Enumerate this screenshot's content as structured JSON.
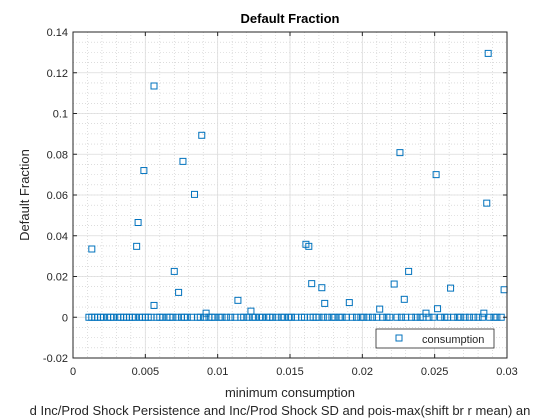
{
  "chart_data": {
    "type": "scatter",
    "title": "Default Fraction",
    "xlabel": "minimum consumption",
    "ylabel": "Default Fraction",
    "caption": "d Inc/Prod Shock Persistence and Inc/Prod Shock SD and pois-max(shift br r mean) an",
    "xlim": [
      0,
      0.03
    ],
    "ylim": [
      -0.02,
      0.14
    ],
    "xticks": [
      0,
      0.005,
      0.01,
      0.015,
      0.02,
      0.025,
      0.03
    ],
    "xtick_labels": [
      "0",
      "0.005",
      "0.01",
      "0.015",
      "0.02",
      "0.025",
      "0.03"
    ],
    "yticks": [
      -0.02,
      0,
      0.02,
      0.04,
      0.06,
      0.08,
      0.1,
      0.12,
      0.14
    ],
    "ytick_labels": [
      "-0.02",
      "0",
      "0.02",
      "0.04",
      "0.06",
      "0.08",
      "0.1",
      "0.12",
      "0.14"
    ],
    "grid": true,
    "minor_grid": true,
    "legend_position": "bottom-right",
    "marker_color": "#0072bd",
    "series": [
      {
        "name": "consumption",
        "marker": "square",
        "points": [
          [
            0.0013,
            0.0335
          ],
          [
            0.0044,
            0.0348
          ],
          [
            0.0045,
            0.0465
          ],
          [
            0.0049,
            0.072
          ],
          [
            0.0056,
            0.1135
          ],
          [
            0.0056,
            0.0058
          ],
          [
            0.007,
            0.0225
          ],
          [
            0.0073,
            0.0122
          ],
          [
            0.0076,
            0.0765
          ],
          [
            0.0084,
            0.0603
          ],
          [
            0.0089,
            0.0893
          ],
          [
            0.0092,
            0.002
          ],
          [
            0.0114,
            0.0083
          ],
          [
            0.0123,
            0.003
          ],
          [
            0.0161,
            0.0358
          ],
          [
            0.0163,
            0.0348
          ],
          [
            0.0165,
            0.0165
          ],
          [
            0.0172,
            0.0145
          ],
          [
            0.0174,
            0.0068
          ],
          [
            0.0191,
            0.0072
          ],
          [
            0.0212,
            0.004
          ],
          [
            0.0222,
            0.0163
          ],
          [
            0.0226,
            0.0808
          ],
          [
            0.0229,
            0.0088
          ],
          [
            0.0232,
            0.0225
          ],
          [
            0.0244,
            0.002
          ],
          [
            0.0251,
            0.07
          ],
          [
            0.0252,
            0.0042
          ],
          [
            0.0261,
            0.0143
          ],
          [
            0.0284,
            0.002
          ],
          [
            0.0286,
            0.056
          ],
          [
            0.0287,
            0.1295
          ],
          [
            0.0298,
            0.0135
          ],
          [
            0.0011,
            0
          ],
          [
            0.0013,
            0
          ],
          [
            0.0015,
            0
          ],
          [
            0.0017,
            0
          ],
          [
            0.0019,
            0
          ],
          [
            0.0021,
            0
          ],
          [
            0.0024,
            0
          ],
          [
            0.0026,
            0
          ],
          [
            0.0028,
            0
          ],
          [
            0.0031,
            0
          ],
          [
            0.0033,
            0
          ],
          [
            0.0035,
            0
          ],
          [
            0.0037,
            0
          ],
          [
            0.0039,
            0
          ],
          [
            0.0041,
            0
          ],
          [
            0.0043,
            0
          ],
          [
            0.0046,
            0
          ],
          [
            0.0048,
            0
          ],
          [
            0.005,
            0
          ],
          [
            0.0052,
            0
          ],
          [
            0.0054,
            0
          ],
          [
            0.0058,
            0
          ],
          [
            0.006,
            0
          ],
          [
            0.0062,
            0
          ],
          [
            0.0065,
            0
          ],
          [
            0.0067,
            0
          ],
          [
            0.0069,
            0
          ],
          [
            0.0072,
            0
          ],
          [
            0.0075,
            0
          ],
          [
            0.0077,
            0
          ],
          [
            0.0079,
            0
          ],
          [
            0.0082,
            0
          ],
          [
            0.0086,
            0
          ],
          [
            0.0088,
            0
          ],
          [
            0.0091,
            0
          ],
          [
            0.0094,
            0
          ],
          [
            0.0096,
            0
          ],
          [
            0.0098,
            0
          ],
          [
            0.0101,
            0
          ],
          [
            0.0103,
            0
          ],
          [
            0.0106,
            0
          ],
          [
            0.0109,
            0
          ],
          [
            0.0112,
            0
          ],
          [
            0.0116,
            0
          ],
          [
            0.0118,
            0
          ],
          [
            0.0121,
            0
          ],
          [
            0.0124,
            0
          ],
          [
            0.0126,
            0
          ],
          [
            0.0129,
            0
          ],
          [
            0.0131,
            0
          ],
          [
            0.0134,
            0
          ],
          [
            0.0136,
            0
          ],
          [
            0.0138,
            0
          ],
          [
            0.0141,
            0
          ],
          [
            0.0144,
            0
          ],
          [
            0.0146,
            0
          ],
          [
            0.0149,
            0
          ],
          [
            0.0151,
            0
          ],
          [
            0.0154,
            0
          ],
          [
            0.0158,
            0
          ],
          [
            0.016,
            0
          ],
          [
            0.0164,
            0
          ],
          [
            0.0166,
            0
          ],
          [
            0.0168,
            0
          ],
          [
            0.017,
            0
          ],
          [
            0.0173,
            0
          ],
          [
            0.0176,
            0
          ],
          [
            0.0179,
            0
          ],
          [
            0.0181,
            0
          ],
          [
            0.0184,
            0
          ],
          [
            0.0186,
            0
          ],
          [
            0.0189,
            0
          ],
          [
            0.0193,
            0
          ],
          [
            0.0196,
            0
          ],
          [
            0.0199,
            0
          ],
          [
            0.0201,
            0
          ],
          [
            0.0204,
            0
          ],
          [
            0.0207,
            0
          ],
          [
            0.021,
            0
          ],
          [
            0.0214,
            0
          ],
          [
            0.0217,
            0
          ],
          [
            0.0219,
            0
          ],
          [
            0.0224,
            0
          ],
          [
            0.0227,
            0
          ],
          [
            0.023,
            0
          ],
          [
            0.0234,
            0
          ],
          [
            0.0237,
            0
          ],
          [
            0.024,
            0
          ],
          [
            0.0242,
            0
          ],
          [
            0.0246,
            0
          ],
          [
            0.0249,
            0
          ],
          [
            0.0254,
            0
          ],
          [
            0.0257,
            0
          ],
          [
            0.0259,
            0
          ],
          [
            0.0263,
            0
          ],
          [
            0.0266,
            0
          ],
          [
            0.0268,
            0
          ],
          [
            0.0271,
            0
          ],
          [
            0.0274,
            0
          ],
          [
            0.0277,
            0
          ],
          [
            0.028,
            0
          ],
          [
            0.0283,
            0
          ],
          [
            0.0288,
            0
          ],
          [
            0.0291,
            0
          ],
          [
            0.0293,
            0
          ],
          [
            0.0296,
            0
          ]
        ]
      }
    ]
  }
}
